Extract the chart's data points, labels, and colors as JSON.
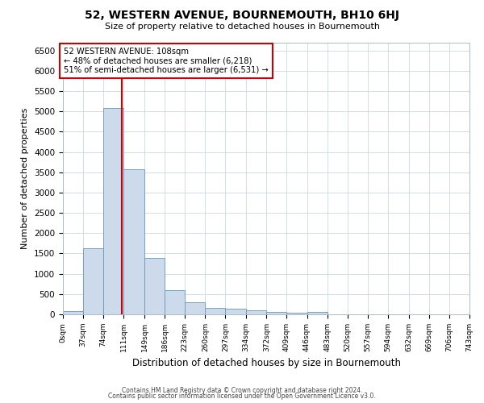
{
  "title": "52, WESTERN AVENUE, BOURNEMOUTH, BH10 6HJ",
  "subtitle": "Size of property relative to detached houses in Bournemouth",
  "xlabel": "Distribution of detached houses by size in Bournemouth",
  "ylabel": "Number of detached properties",
  "bin_edges": [
    0,
    37,
    74,
    111,
    149,
    186,
    223,
    260,
    297,
    334,
    372,
    409,
    446,
    483,
    520,
    557,
    594,
    632,
    669,
    706,
    743
  ],
  "bin_counts": [
    75,
    1630,
    5080,
    3580,
    1390,
    590,
    295,
    155,
    130,
    90,
    50,
    35,
    55,
    0,
    0,
    0,
    0,
    0,
    0,
    0
  ],
  "bar_color": "#ccdaeb",
  "bar_edgecolor": "#6699bb",
  "property_line_x": 108,
  "property_line_color": "#cc0000",
  "annotation_text": "52 WESTERN AVENUE: 108sqm\n← 48% of detached houses are smaller (6,218)\n51% of semi-detached houses are larger (6,531) →",
  "annotation_box_edgecolor": "#cc0000",
  "annotation_box_facecolor": "#ffffff",
  "ylim": [
    0,
    6700
  ],
  "yticks": [
    0,
    500,
    1000,
    1500,
    2000,
    2500,
    3000,
    3500,
    4000,
    4500,
    5000,
    5500,
    6000,
    6500
  ],
  "grid_color": "#ccd8e4",
  "footer_line1": "Contains HM Land Registry data © Crown copyright and database right 2024.",
  "footer_line2": "Contains public sector information licensed under the Open Government Licence v3.0."
}
